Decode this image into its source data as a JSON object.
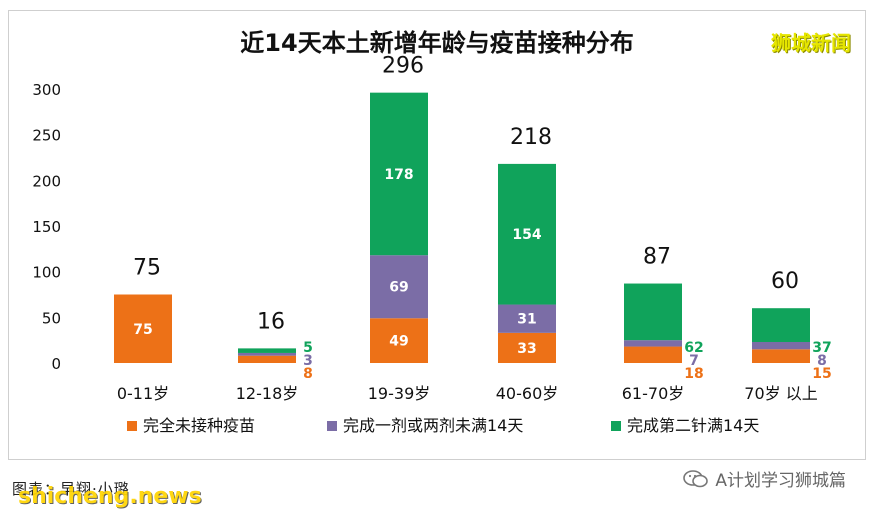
{
  "brand_top": "狮城新闻",
  "credit": "图表：早翔·小璐",
  "watermark_left": "shicheng.news",
  "watermark_right": "A计划学习狮城篇",
  "colors": {
    "unvaccinated": "#ed7117",
    "partial": "#7b6da6",
    "full": "#10a35b"
  },
  "chart_data": {
    "type": "bar",
    "stacked": true,
    "title": "近14天本土新增年龄与疫苗接种分布",
    "categories": [
      "0-11岁",
      "12-18岁",
      "19-39岁",
      "40-60岁",
      "61-70岁",
      "70岁 以上"
    ],
    "totals": [
      75,
      16,
      296,
      218,
      87,
      60
    ],
    "series": [
      {
        "name": "完全未接种疫苗",
        "values": [
          75,
          8,
          49,
          33,
          18,
          15
        ]
      },
      {
        "name": "完成一剂或两剂未满14天",
        "values": [
          0,
          3,
          69,
          31,
          7,
          8
        ]
      },
      {
        "name": "完成第二针满14天",
        "values": [
          0,
          5,
          178,
          154,
          62,
          37
        ]
      }
    ],
    "ylim": [
      0,
      300
    ],
    "yticks": [
      0,
      50,
      100,
      150,
      200,
      250,
      300
    ],
    "grid": false,
    "legend": "bottom"
  }
}
